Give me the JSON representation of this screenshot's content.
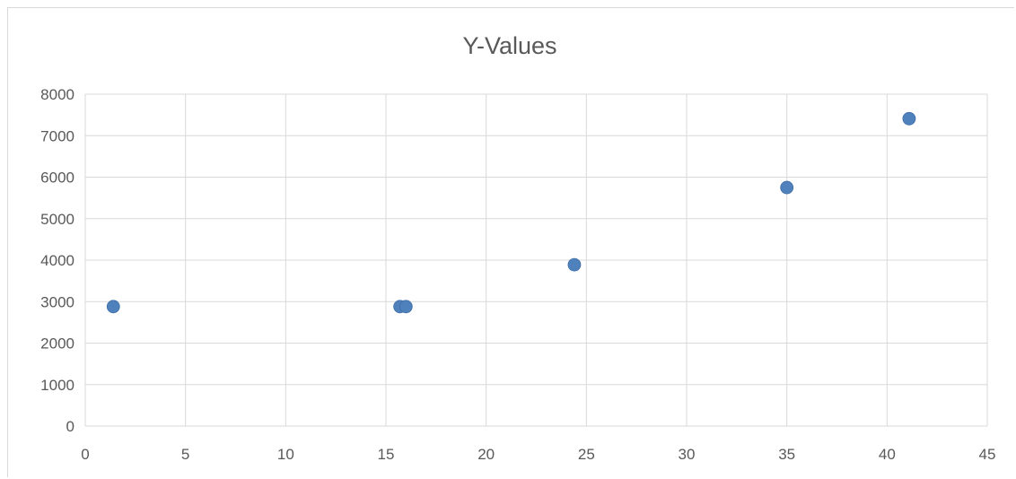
{
  "chart_data": {
    "type": "scatter",
    "title": "Y-Values",
    "xlabel": "",
    "ylabel": "",
    "xlim": [
      0,
      45
    ],
    "ylim": [
      0,
      8000
    ],
    "x_ticks": [
      0,
      5,
      10,
      15,
      20,
      25,
      30,
      35,
      40,
      45
    ],
    "y_ticks": [
      0,
      1000,
      2000,
      3000,
      4000,
      5000,
      6000,
      7000,
      8000
    ],
    "grid": true,
    "legend": "none",
    "series": [
      {
        "color": "#4f81bd",
        "points": [
          {
            "x": 1.4,
            "y": 2880
          },
          {
            "x": 15.7,
            "y": 2880
          },
          {
            "x": 16.0,
            "y": 2880
          },
          {
            "x": 24.4,
            "y": 3890
          },
          {
            "x": 35.0,
            "y": 5750
          },
          {
            "x": 41.1,
            "y": 7410
          }
        ]
      }
    ]
  }
}
